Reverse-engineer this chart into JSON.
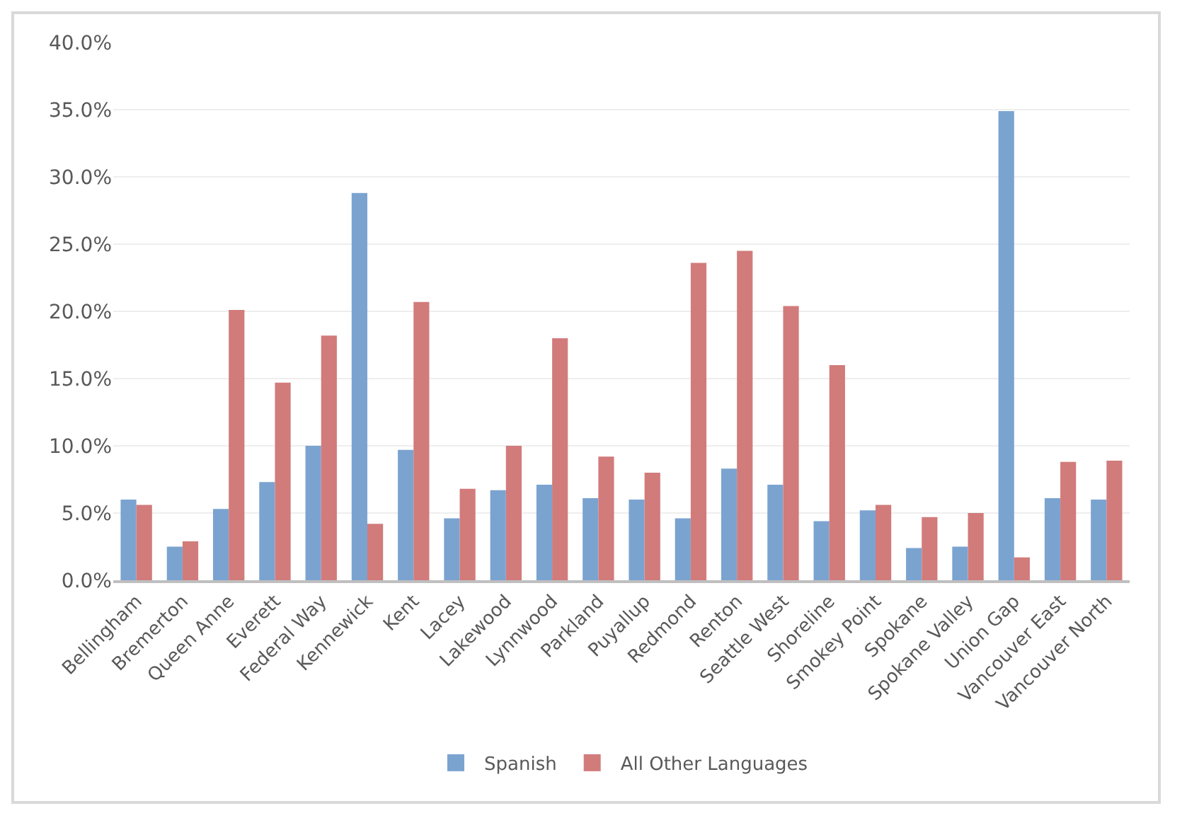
{
  "chart_data": {
    "type": "bar",
    "categories": [
      "Bellingham",
      "Bremerton",
      "Queen Anne",
      "Everett",
      "Federal Way",
      "Kennewick",
      "Kent",
      "Lacey",
      "Lakewood",
      "Lynnwood",
      "Parkland",
      "Puyallup",
      "Redmond",
      "Renton",
      "Seattle West",
      "Shoreline",
      "Smokey Point",
      "Spokane",
      "Spokane Valley",
      "Union Gap",
      "Vancouver East",
      "Vancouver North"
    ],
    "series": [
      {
        "name": "Spanish",
        "color": "#7ba3d0",
        "values": [
          6.0,
          2.5,
          5.3,
          7.3,
          10.0,
          28.8,
          9.7,
          4.6,
          6.7,
          7.1,
          6.1,
          6.0,
          4.6,
          8.3,
          7.1,
          4.4,
          5.2,
          2.4,
          2.5,
          34.9,
          6.1,
          6.0
        ]
      },
      {
        "name": "All Other Languages",
        "color": "#d27b7b",
        "values": [
          5.6,
          2.9,
          20.1,
          14.7,
          18.2,
          4.2,
          20.7,
          6.8,
          10.0,
          18.0,
          9.2,
          8.0,
          23.6,
          24.5,
          20.4,
          16.0,
          5.6,
          4.7,
          5.0,
          1.7,
          8.8,
          8.9
        ]
      }
    ],
    "ylim": [
      0,
      40
    ],
    "yticks": [
      {
        "value": 0,
        "label": "0.0%"
      },
      {
        "value": 5,
        "label": "5.0%"
      },
      {
        "value": 10,
        "label": "10.0%"
      },
      {
        "value": 15,
        "label": "15.0%"
      },
      {
        "value": 20,
        "label": "20.0%"
      },
      {
        "value": 25,
        "label": "25.0%"
      },
      {
        "value": 30,
        "label": "30.0%"
      },
      {
        "value": 35,
        "label": "35.0%"
      },
      {
        "value": 40,
        "label": "40.0%"
      }
    ],
    "grid": "y",
    "legend": "bottom"
  }
}
